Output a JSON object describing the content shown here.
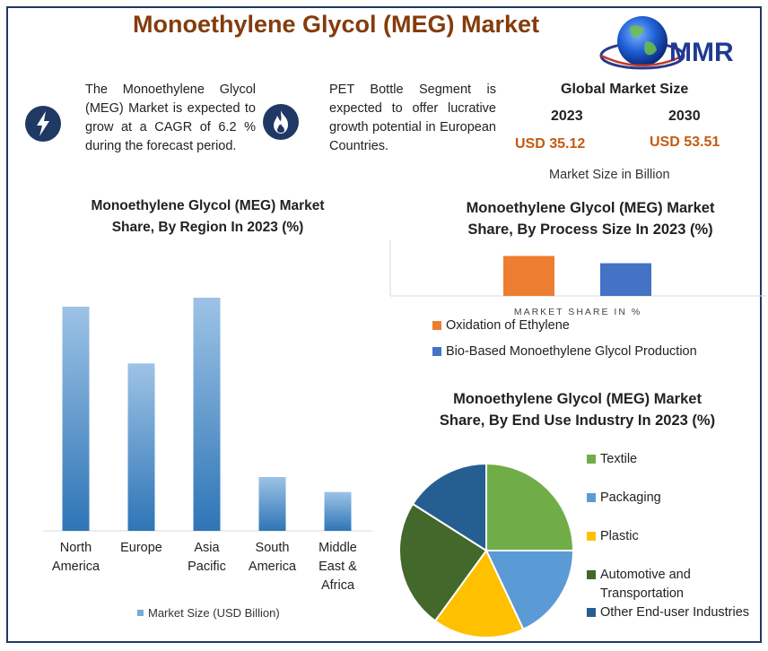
{
  "header": {
    "title": "Monoethylene Glycol (MEG) Market",
    "logo_text": "MMR"
  },
  "info": {
    "cagr_text": "The Monoethylene Glycol (MEG) Market is expected to grow at a CAGR of 6.2 % during the forecast period.",
    "segment_text": "PET Bottle Segment is expected to offer lucrative growth potential in European Countries.",
    "cagr_icon": "lightning-icon",
    "segment_icon": "flame-icon"
  },
  "market_size": {
    "heading": "Global Market Size",
    "year_a": "2023",
    "year_b": "2030",
    "value_a": "USD 35.12",
    "value_b": "USD 53.51",
    "unit": "Market Size in Billion"
  },
  "colors": {
    "navy": "#1f3864",
    "title_brown": "#843c0c",
    "value_orange": "#c55a11",
    "bar_blue": "#5b9bd5",
    "orange": "#ed7d31",
    "blue": "#4472c4",
    "green": "#70ad47",
    "light_blue": "#5b9bd5",
    "yellow": "#ffc000",
    "dark_green": "#43682b",
    "dark_blue": "#255e91"
  },
  "chart_data": [
    {
      "type": "bar",
      "title": "Monoethylene Glycol (MEG) Market Share, By Region In 2023 (%)",
      "categories": [
        [
          "North",
          "America"
        ],
        [
          "Europe"
        ],
        [
          "Asia",
          "Pacific"
        ],
        [
          "South",
          "America"
        ],
        [
          "Middle",
          "East &",
          "Africa"
        ]
      ],
      "series": [
        {
          "name": "Market Size (USD Billion)",
          "values": [
            37.5,
            28,
            39,
            9,
            6.5
          ]
        }
      ],
      "ylim": [
        0,
        45
      ],
      "grid": false,
      "legend": "bottom"
    },
    {
      "type": "bar",
      "title": "Monoethylene Glycol (MEG) Market Share, By Process Size In 2023 (%)",
      "xlabel": "MARKET SHARE IN %",
      "categories": [
        "Oxidation of Ethylene",
        "Bio-Based Monoethylene Glycol Production"
      ],
      "values": [
        55,
        45
      ],
      "ylim": [
        0,
        100
      ],
      "grid": false,
      "legend": "bottom"
    },
    {
      "type": "pie",
      "title": "Monoethylene Glycol (MEG) Market Share, By End Use Industry In 2023 (%)",
      "labels": [
        "Textile",
        "Packaging",
        "Plastic",
        "Automotive and Transportation",
        "Other End-user Industries"
      ],
      "values": [
        25,
        18,
        17,
        24,
        16
      ],
      "legend": "right"
    }
  ]
}
